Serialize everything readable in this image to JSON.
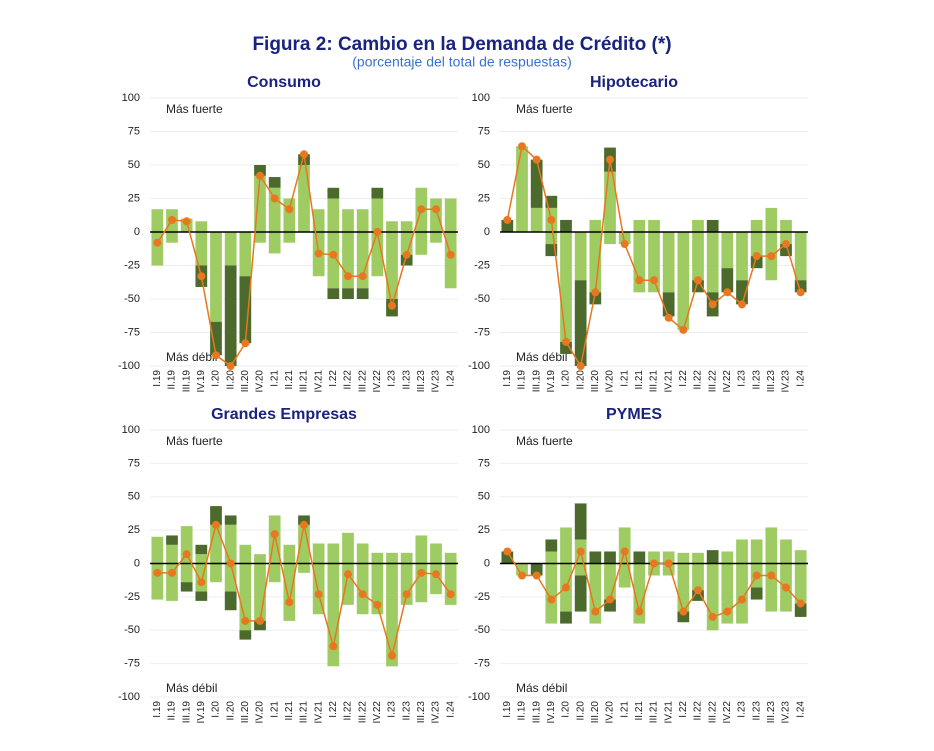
{
  "title": "Figura 2: Cambio en la Demanda de Crédito (*)",
  "subtitle": "(porcentaje del total de respuestas)",
  "chart_data": [
    {
      "type": "bar",
      "title": "Consumo",
      "annotations": [
        "Más fuerte",
        "Más débil"
      ],
      "categories": [
        "I.19",
        "II.19",
        "III.19",
        "IV.19",
        "I.20",
        "II.20",
        "III.20",
        "IV.20",
        "I.21",
        "II.21",
        "III.21",
        "IV.21",
        "I.22",
        "II.22",
        "III.22",
        "IV.22",
        "I.23",
        "II.23",
        "III.23",
        "IV.23",
        "I.24"
      ],
      "ylim": [
        -100,
        100
      ],
      "yticks": [
        -100,
        -75,
        -50,
        -25,
        0,
        25,
        50,
        75,
        100
      ],
      "grid": true,
      "series": [
        {
          "type": "bar",
          "color": "#9fcb63",
          "values": [
            17,
            17,
            10,
            8,
            0,
            0,
            0,
            42,
            33,
            25,
            50,
            17,
            25,
            17,
            17,
            25,
            8,
            8,
            33,
            25,
            25
          ]
        },
        {
          "type": "bar",
          "color": "#4b6a2c",
          "values": [
            0,
            0,
            0,
            0,
            0,
            0,
            0,
            8,
            8,
            0,
            8,
            0,
            8,
            0,
            0,
            8,
            0,
            0,
            0,
            0,
            0
          ]
        },
        {
          "type": "bar",
          "color": "#9fcb63",
          "values": [
            -25,
            -8,
            0,
            -25,
            -67,
            -25,
            -33,
            -8,
            -16,
            -8,
            0,
            -33,
            -42,
            -42,
            -42,
            -33,
            -50,
            -17,
            -17,
            -8,
            -42
          ]
        },
        {
          "type": "bar",
          "color": "#4b6a2c",
          "values": [
            0,
            0,
            0,
            -16,
            -25,
            -75,
            -50,
            0,
            0,
            0,
            0,
            0,
            -8,
            -8,
            -8,
            0,
            -13,
            -8,
            0,
            0,
            0
          ]
        },
        {
          "type": "line",
          "color": "#e8771f",
          "values": [
            -8,
            9,
            8,
            -33,
            -92,
            -100,
            -83,
            42,
            25,
            17,
            58,
            -16,
            -17,
            -33,
            -33,
            0,
            -55,
            -17,
            17,
            17,
            -17
          ]
        }
      ]
    },
    {
      "type": "bar",
      "title": "Hipotecario",
      "annotations": [
        "Más fuerte",
        "Más débil"
      ],
      "categories": [
        "I.19",
        "II.19",
        "III.19",
        "IV.19",
        "I.20",
        "II.20",
        "III.20",
        "IV.20",
        "I.21",
        "II.21",
        "III.21",
        "IV.21",
        "I.22",
        "II.22",
        "III.22",
        "IV.22",
        "I.23",
        "II.23",
        "III.23",
        "IV.23",
        "I.24"
      ],
      "ylim": [
        -100,
        100
      ],
      "yticks": [
        -100,
        -75,
        -50,
        -25,
        0,
        25,
        50,
        75,
        100
      ],
      "grid": true,
      "series": [
        {
          "type": "bar",
          "color": "#9fcb63",
          "values": [
            0,
            64,
            18,
            18,
            0,
            0,
            9,
            45,
            0,
            9,
            9,
            0,
            0,
            9,
            0,
            0,
            0,
            9,
            18,
            9,
            0
          ]
        },
        {
          "type": "bar",
          "color": "#4b6a2c",
          "values": [
            9,
            0,
            36,
            9,
            9,
            0,
            0,
            18,
            0,
            0,
            0,
            0,
            0,
            0,
            9,
            0,
            0,
            0,
            0,
            0,
            0
          ]
        },
        {
          "type": "bar",
          "color": "#9fcb63",
          "values": [
            0,
            0,
            0,
            -9,
            -82,
            -36,
            -45,
            -9,
            -9,
            -45,
            -45,
            -45,
            -73,
            -36,
            -45,
            -27,
            -36,
            -18,
            -36,
            -9,
            -36
          ]
        },
        {
          "type": "bar",
          "color": "#4b6a2c",
          "values": [
            0,
            0,
            0,
            -9,
            -9,
            -64,
            -9,
            0,
            0,
            0,
            0,
            -18,
            0,
            -9,
            -18,
            -18,
            -18,
            -9,
            0,
            -9,
            -9
          ]
        },
        {
          "type": "line",
          "color": "#e8771f",
          "values": [
            9,
            64,
            54,
            9,
            -82,
            -100,
            -45,
            54,
            -9,
            -36,
            -36,
            -64,
            -73,
            -36,
            -54,
            -45,
            -54,
            -18,
            -18,
            -9,
            -45
          ]
        }
      ]
    },
    {
      "type": "bar",
      "title": "Grandes Empresas",
      "annotations": [
        "Más fuerte",
        "Más débil"
      ],
      "categories": [
        "I.19",
        "II.19",
        "III.19",
        "IV.19",
        "I.20",
        "II.20",
        "III.20",
        "IV.20",
        "I.21",
        "II.21",
        "III.21",
        "IV.21",
        "I.22",
        "II.22",
        "III.22",
        "IV.22",
        "I.23",
        "II.23",
        "III.23",
        "IV.23",
        "I.24"
      ],
      "ylim": [
        -100,
        100
      ],
      "yticks": [
        -100,
        -75,
        -50,
        -25,
        0,
        25,
        50,
        75,
        100
      ],
      "grid": true,
      "series": [
        {
          "type": "bar",
          "color": "#9fcb63",
          "values": [
            20,
            14,
            28,
            7,
            29,
            29,
            14,
            7,
            36,
            14,
            29,
            15,
            15,
            23,
            15,
            8,
            8,
            8,
            21,
            15,
            8
          ]
        },
        {
          "type": "bar",
          "color": "#4b6a2c",
          "values": [
            0,
            7,
            0,
            7,
            14,
            7,
            0,
            0,
            0,
            0,
            7,
            0,
            0,
            0,
            0,
            0,
            0,
            0,
            0,
            0,
            0
          ]
        },
        {
          "type": "bar",
          "color": "#9fcb63",
          "values": [
            -27,
            -28,
            -14,
            -21,
            -14,
            -21,
            -50,
            -43,
            -14,
            -43,
            -7,
            -38,
            -77,
            -31,
            -38,
            -38,
            -77,
            -31,
            -29,
            -23,
            -31
          ]
        },
        {
          "type": "bar",
          "color": "#4b6a2c",
          "values": [
            0,
            0,
            -7,
            -7,
            0,
            -14,
            -7,
            -7,
            0,
            0,
            0,
            0,
            0,
            0,
            0,
            0,
            0,
            0,
            0,
            0,
            0
          ]
        },
        {
          "type": "line",
          "color": "#e8771f",
          "values": [
            -7,
            -7,
            7,
            -14,
            29,
            0,
            -43,
            -43,
            22,
            -29,
            29,
            -23,
            -62,
            -8,
            -23,
            -31,
            -69,
            -23,
            -7,
            -8,
            -23
          ]
        }
      ]
    },
    {
      "type": "bar",
      "title": "PYMES",
      "annotations": [
        "Más fuerte",
        "Más débil"
      ],
      "categories": [
        "I.19",
        "II.19",
        "III.19",
        "IV.19",
        "I.20",
        "II.20",
        "III.20",
        "IV.20",
        "I.21",
        "II.21",
        "III.21",
        "IV.21",
        "I.22",
        "II.22",
        "III.22",
        "IV.22",
        "I.23",
        "II.23",
        "III.23",
        "IV.23",
        "I.24"
      ],
      "ylim": [
        -100,
        100
      ],
      "yticks": [
        -100,
        -75,
        -50,
        -25,
        0,
        25,
        50,
        75,
        100
      ],
      "grid": true,
      "series": [
        {
          "type": "bar",
          "color": "#9fcb63",
          "values": [
            0,
            0,
            0,
            9,
            27,
            18,
            0,
            0,
            27,
            0,
            9,
            9,
            8,
            8,
            0,
            9,
            18,
            18,
            27,
            18,
            10
          ]
        },
        {
          "type": "bar",
          "color": "#4b6a2c",
          "values": [
            9,
            0,
            0,
            9,
            0,
            27,
            9,
            9,
            0,
            9,
            0,
            0,
            0,
            0,
            10,
            0,
            0,
            0,
            0,
            0,
            0
          ]
        },
        {
          "type": "bar",
          "color": "#9fcb63",
          "values": [
            0,
            -9,
            0,
            -45,
            -36,
            -9,
            -45,
            -27,
            -18,
            -45,
            -9,
            -9,
            -36,
            -20,
            -50,
            -45,
            -45,
            -18,
            -36,
            -36,
            -30
          ]
        },
        {
          "type": "bar",
          "color": "#4b6a2c",
          "values": [
            0,
            0,
            -9,
            0,
            -9,
            -27,
            0,
            -9,
            0,
            0,
            0,
            0,
            -8,
            -8,
            0,
            0,
            0,
            -9,
            0,
            0,
            -10
          ]
        },
        {
          "type": "line",
          "color": "#e8771f",
          "values": [
            9,
            -9,
            -9,
            -27,
            -18,
            9,
            -36,
            -27,
            9,
            -36,
            0,
            0,
            -36,
            -20,
            -40,
            -36,
            -27,
            -9,
            -9,
            -18,
            -30
          ]
        }
      ]
    }
  ]
}
